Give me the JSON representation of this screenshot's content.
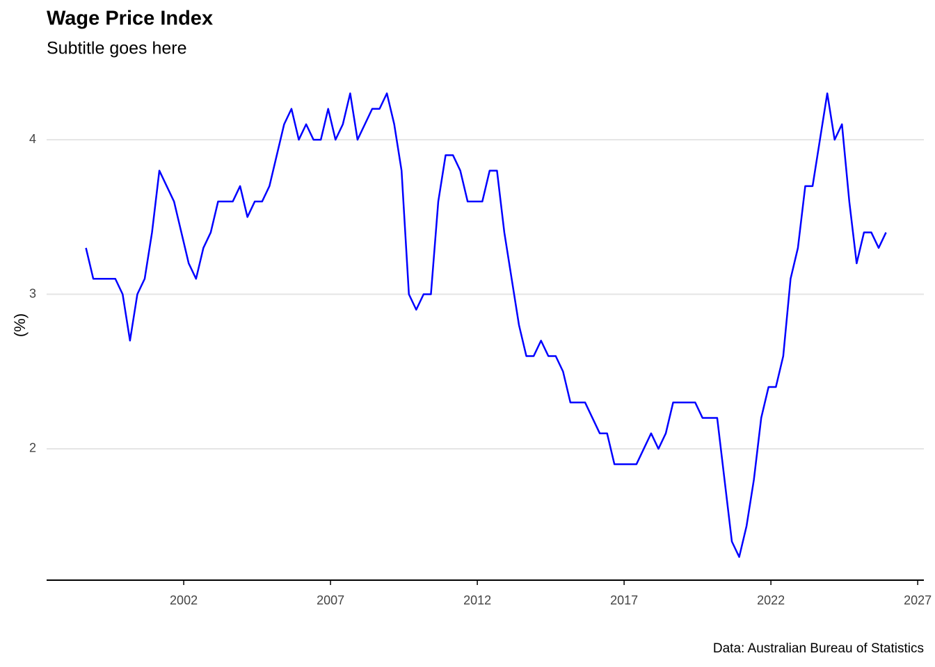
{
  "chart_data": {
    "type": "line",
    "title": "Wage Price Index",
    "subtitle": "Subtitle goes here",
    "y_label": "(%)",
    "caption": "Data: Australian Bureau of Statistics",
    "x": [
      1998.67,
      1998.92,
      1999.17,
      1999.42,
      1999.67,
      1999.92,
      2000.17,
      2000.42,
      2000.67,
      2000.92,
      2001.17,
      2001.42,
      2001.67,
      2001.92,
      2002.17,
      2002.42,
      2002.67,
      2002.92,
      2003.17,
      2003.42,
      2003.67,
      2003.92,
      2004.17,
      2004.42,
      2004.67,
      2004.92,
      2005.17,
      2005.42,
      2005.67,
      2005.92,
      2006.17,
      2006.42,
      2006.67,
      2006.92,
      2007.17,
      2007.42,
      2007.67,
      2007.92,
      2008.17,
      2008.42,
      2008.67,
      2008.92,
      2009.17,
      2009.42,
      2009.67,
      2009.92,
      2010.17,
      2010.42,
      2010.67,
      2010.92,
      2011.17,
      2011.42,
      2011.67,
      2011.92,
      2012.17,
      2012.42,
      2012.67,
      2012.92,
      2013.17,
      2013.42,
      2013.67,
      2013.92,
      2014.17,
      2014.42,
      2014.67,
      2014.92,
      2015.17,
      2015.42,
      2015.67,
      2015.92,
      2016.17,
      2016.42,
      2016.67,
      2016.92,
      2017.17,
      2017.42,
      2017.67,
      2017.92,
      2018.17,
      2018.42,
      2018.67,
      2018.92,
      2019.17,
      2019.42,
      2019.67,
      2019.92,
      2020.17,
      2020.42,
      2020.67,
      2020.92,
      2021.17,
      2021.42,
      2021.67,
      2021.92,
      2022.17,
      2022.42,
      2022.67,
      2022.92,
      2023.17,
      2023.42,
      2023.67,
      2023.92,
      2024.17,
      2024.42,
      2024.67,
      2024.92,
      2025.17,
      2025.42,
      2025.67,
      2025.92
    ],
    "series": [
      {
        "color": "#0000ff",
        "values": [
          3.3,
          3.1,
          3.1,
          3.1,
          3.1,
          3.0,
          2.7,
          3.0,
          3.1,
          3.4,
          3.8,
          3.7,
          3.6,
          3.4,
          3.2,
          3.1,
          3.3,
          3.4,
          3.6,
          3.6,
          3.6,
          3.7,
          3.5,
          3.6,
          3.6,
          3.7,
          3.9,
          4.1,
          4.2,
          4.0,
          4.1,
          4.0,
          4.0,
          4.2,
          4.0,
          4.1,
          4.3,
          4.0,
          4.1,
          4.2,
          4.2,
          4.3,
          4.1,
          3.8,
          3.0,
          2.9,
          3.0,
          3.0,
          3.6,
          3.9,
          3.9,
          3.8,
          3.6,
          3.6,
          3.6,
          3.8,
          3.8,
          3.4,
          3.1,
          2.8,
          2.6,
          2.6,
          2.7,
          2.6,
          2.6,
          2.5,
          2.3,
          2.3,
          2.3,
          2.2,
          2.1,
          2.1,
          1.9,
          1.9,
          1.9,
          1.9,
          2.0,
          2.1,
          2.0,
          2.1,
          2.3,
          2.3,
          2.3,
          2.3,
          2.2,
          2.2,
          2.2,
          1.8,
          1.4,
          1.3,
          1.5,
          1.8,
          2.2,
          2.4,
          2.4,
          2.6,
          3.1,
          3.3,
          3.7,
          3.7,
          4.0,
          4.3,
          4.0,
          4.1,
          3.6,
          3.2,
          3.4,
          3.4,
          3.3,
          3.4
        ]
      }
    ],
    "xlim": [
      1997.33,
      2027.21
    ],
    "xticks": [
      2002,
      2007,
      2012,
      2017,
      2022,
      2027
    ],
    "ylim": [
      1.15,
      4.45
    ],
    "yticks": [
      2,
      3,
      4
    ],
    "grid": true
  }
}
